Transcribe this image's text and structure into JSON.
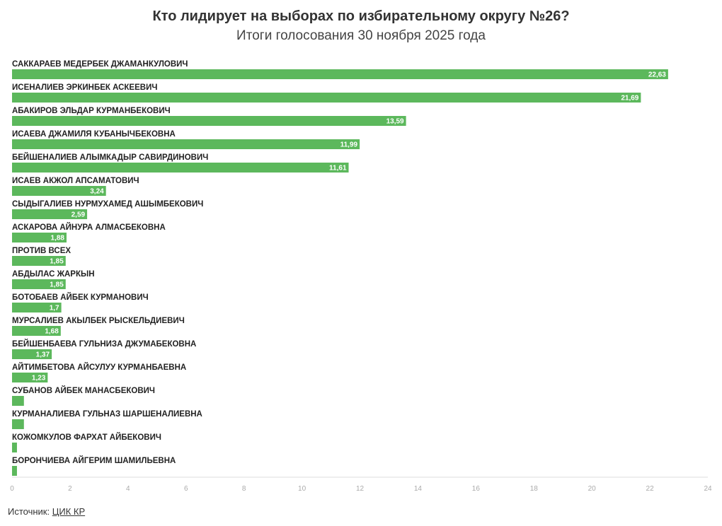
{
  "colors": {
    "bar": "#5cb85c",
    "axis": "#dddddd",
    "tick_text": "#aaaaaa",
    "value_text": "#ffffff"
  },
  "source_label": "Источник:",
  "source_link": "ЦИК КР",
  "chart_data": {
    "type": "bar",
    "orientation": "horizontal",
    "title": "Кто лидирует на выборах по избирательному округу №26?",
    "subtitle": "Итоги голосования 30 ноября 2025 года",
    "xlim": [
      0,
      24
    ],
    "xticks": [
      0,
      2,
      4,
      6,
      8,
      10,
      12,
      14,
      16,
      18,
      20,
      22,
      24
    ],
    "grid": false,
    "categories": [
      "САККАРАЕВ МЕДЕРБЕК ДЖАМАНКУЛОВИЧ",
      "ИСЕНАЛИЕВ ЭРКИНБЕК АСКЕЕВИЧ",
      "АБАКИРОВ ЭЛЬДАР КУРМАНБЕКОВИЧ",
      "ИСАЕВА ДЖАМИЛЯ КУБАНЫЧБЕКОВНА",
      "БЕЙШЕНАЛИЕВ АЛЫМКАДЫР САВИРДИНОВИЧ",
      "ИСАЕВ АКЖОЛ АПСАМАТОВИЧ",
      "СЫДЫГАЛИЕВ НУРМУХАМЕД АШЫМБЕКОВИЧ",
      "АСКАРОВА АЙНУРА АЛМАСБЕКОВНА",
      "ПРОТИВ ВСЕХ",
      "АБДЫЛАС ЖАРКЫН",
      "БОТОБАЕВ АЙБЕК КУРМАНОВИЧ",
      "МУРСАЛИЕВ АКЫЛБЕК РЫСКЕЛЬДИЕВИЧ",
      "БЕЙШЕНБАЕВА ГУЛЬНИЗА ДЖУМАБЕКОВНА",
      "АЙТИМБЕТОВА АЙСУЛУУ КУРМАНБАЕВНА",
      "СУБАНОВ АЙБЕК МАНАСБЕКОВИЧ",
      "КУРМАНАЛИЕВА ГУЛЬНАЗ ШАРШЕНАЛИЕВНА",
      "КОЖОМКУЛОВ ФАРХАТ АЙБЕКОВИЧ",
      "БОРОНЧИЕВА АЙГЕРИМ ШАМИЛЬЕВНА"
    ],
    "values": [
      22.63,
      21.69,
      13.59,
      11.99,
      11.61,
      3.24,
      2.59,
      1.88,
      1.85,
      1.85,
      1.7,
      1.68,
      1.37,
      1.23,
      0.41,
      0.41,
      0.17,
      0.17
    ],
    "value_labels": [
      "22,63",
      "21,69",
      "13,59",
      "11,99",
      "11,61",
      "3,24",
      "2,59",
      "1,88",
      "1,85",
      "1,85",
      "1,7",
      "1,68",
      "1,37",
      "1,23",
      "",
      "",
      "",
      ""
    ]
  }
}
